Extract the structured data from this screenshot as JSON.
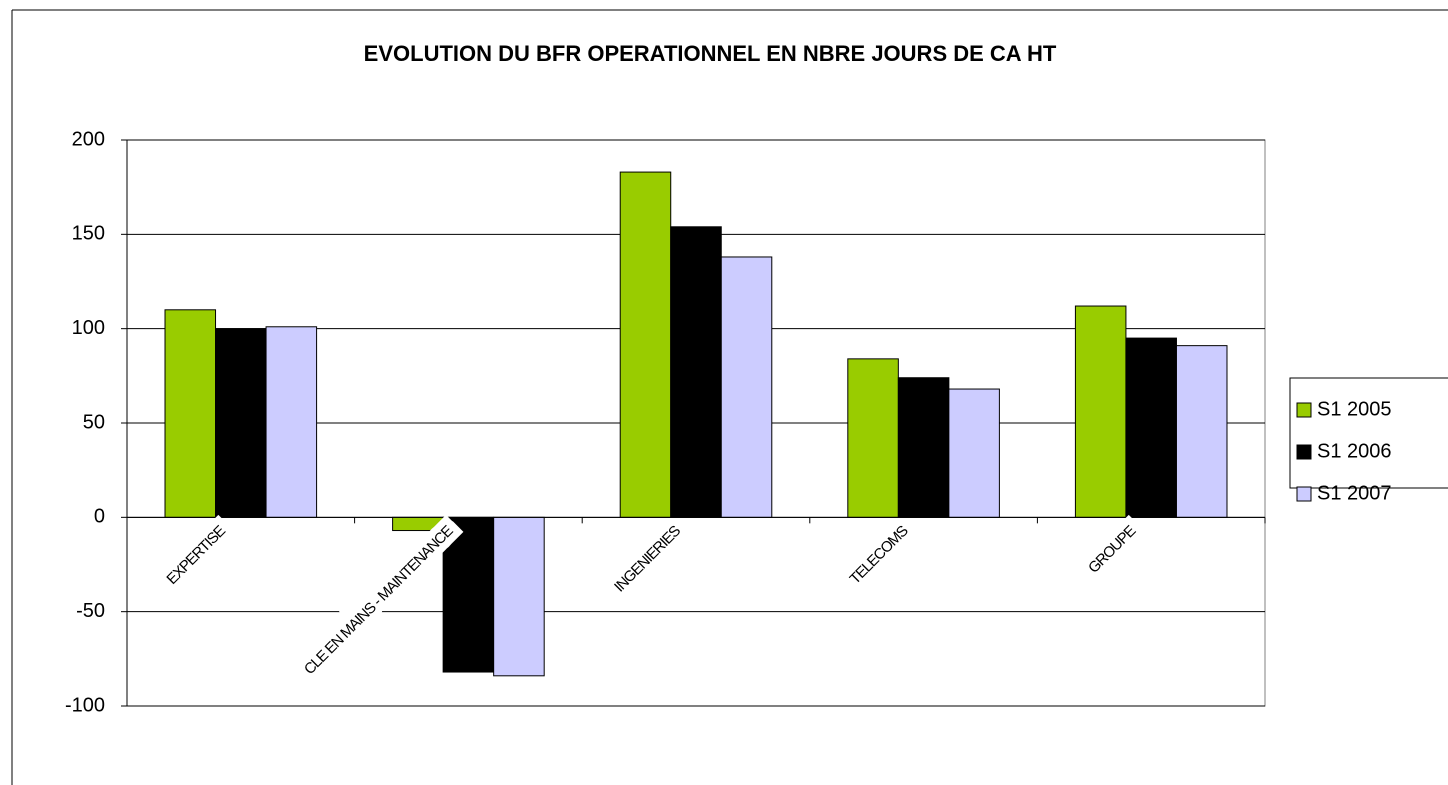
{
  "chart_data": {
    "type": "bar",
    "title": "EVOLUTION DU BFR OPERATIONNEL EN NBRE JOURS DE CA HT",
    "categories": [
      "EXPERTISE",
      "CLE EN MAINS - MAINTENANCE",
      "INGENIERIES",
      "TELECOMS",
      "GROUPE"
    ],
    "series": [
      {
        "name": "S1 2005",
        "color": "#99cc00",
        "values": [
          110,
          -7,
          183,
          84,
          112
        ]
      },
      {
        "name": "S1 2006",
        "color": "#000000",
        "values": [
          100,
          -82,
          154,
          74,
          95
        ]
      },
      {
        "name": "S1 2007",
        "color": "#ccccff",
        "values": [
          101,
          -84,
          138,
          68,
          91
        ]
      }
    ],
    "ylim": [
      -100,
      200
    ],
    "yticks": [
      -100,
      -50,
      0,
      50,
      100,
      150,
      200
    ],
    "grid": true,
    "legend": "right"
  }
}
